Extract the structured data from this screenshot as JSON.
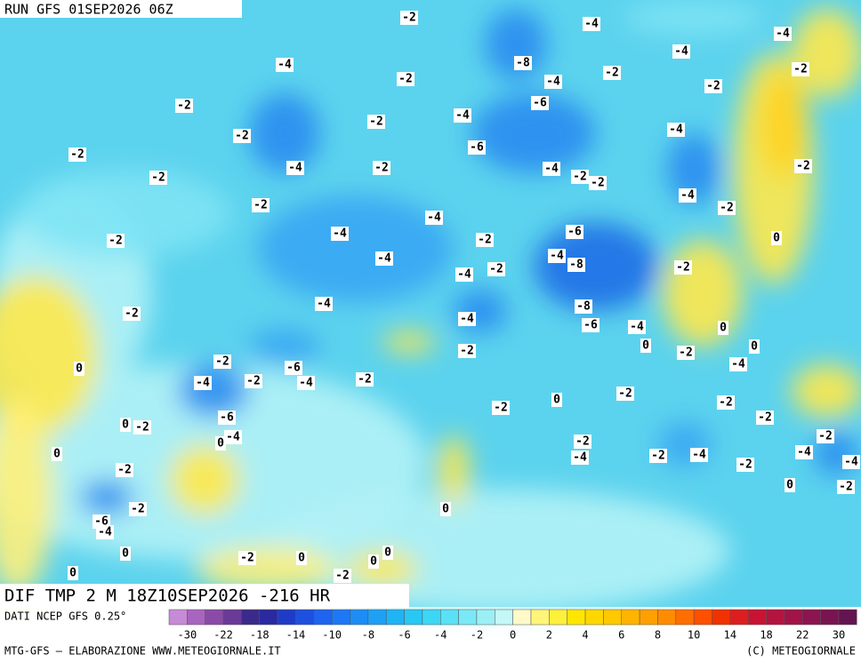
{
  "header": {
    "run": "RUN GFS 01SEP2026 06Z"
  },
  "map": {
    "title": "DIF TMP 2 M 18Z10SEP2026 -216 HR",
    "labels": [
      "-2",
      "-4",
      "-4",
      "-4",
      "-8",
      "-4",
      "-2",
      "-2",
      "-4",
      "-2",
      "-2",
      "-2",
      "-6",
      "-2",
      "-4",
      "-2",
      "-4",
      "-2",
      "-6",
      "-4",
      "-2",
      "-4",
      "-2",
      "-2",
      "-2",
      "-2",
      "-4",
      "-2",
      "-2",
      "-4",
      "-6",
      "-2",
      "-4",
      "-2",
      "0",
      "-4",
      "-4",
      "-8",
      "-2",
      "-4",
      "-2",
      "-4",
      "-8",
      "-2",
      "-4",
      "-6",
      "-4",
      "0",
      "0",
      "0",
      "-2",
      "-2",
      "0",
      "-2",
      "-6",
      "-4",
      "-4",
      "-2",
      "-4",
      "-2",
      "-2",
      "0",
      "-2",
      "-2",
      "-6",
      "-2",
      "0",
      "-2",
      "-4",
      "0",
      "-2",
      "-2",
      "0",
      "-4",
      "-2",
      "-4",
      "-4",
      "-4",
      "-2",
      "-2",
      "-2",
      "0",
      "-2",
      "0",
      "-6",
      "-4",
      "0",
      "-2",
      "0",
      "0",
      "0",
      "-2",
      "0"
    ]
  },
  "footer": {
    "source": "DATI NCEP GFS 0.25°",
    "credit": "MTG-GFS — ELABORAZIONE WWW.METEOGIORNALE.IT",
    "copyright": "(C) METEOGIORNALE",
    "scale_labels": [
      "-30",
      "-22",
      "-18",
      "-14",
      "-10",
      "-8",
      "-6",
      "-4",
      "-2",
      "0",
      "2",
      "4",
      "6",
      "8",
      "10",
      "14",
      "18",
      "22",
      "30"
    ]
  }
}
